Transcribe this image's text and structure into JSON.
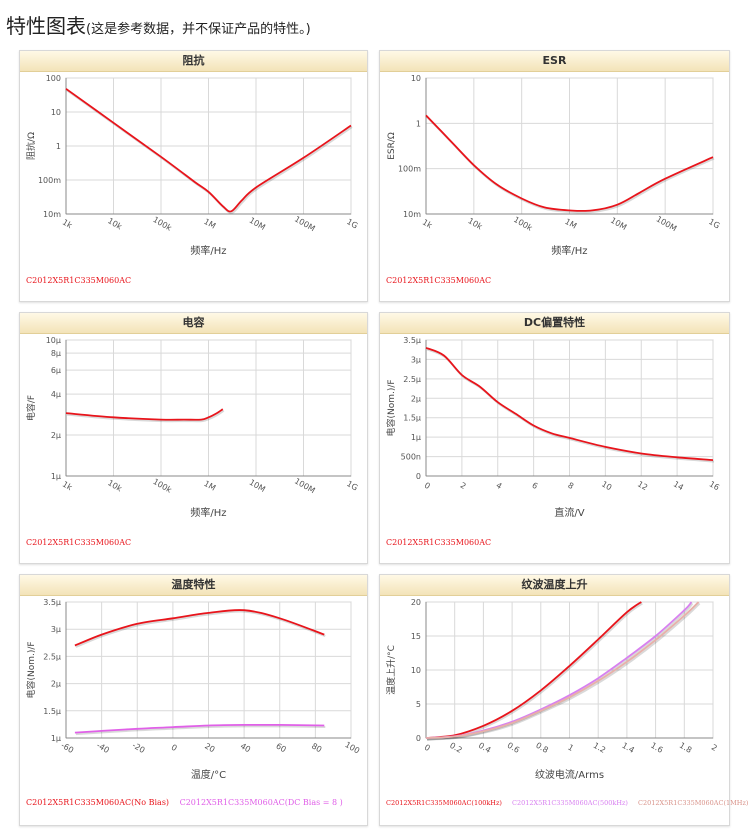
{
  "page": {
    "title": "特性图表",
    "subtitle": "(这是参考数据，并不保证产品的特性。)"
  },
  "chart_data": [
    {
      "id": "impedance",
      "type": "line",
      "title": "阻抗",
      "xlabel": "频率/Hz",
      "ylabel": "阻抗/Ω",
      "xscale": "log",
      "yscale": "log",
      "xlim": [
        1000,
        1000000000
      ],
      "ylim": [
        0.01,
        100
      ],
      "xticks": [
        1000,
        10000,
        100000,
        1000000,
        10000000,
        100000000,
        1000000000
      ],
      "xticklabels": [
        "1k",
        "10k",
        "100k",
        "1M",
        "10M",
        "100M",
        "1G"
      ],
      "yticks": [
        0.01,
        0.1,
        1,
        10,
        100
      ],
      "yticklabels": [
        "10m",
        "100m",
        "1",
        "10",
        "100"
      ],
      "grid": true,
      "series": [
        {
          "name": "C2012X5R1C335M060AC",
          "color": "#e8141b",
          "x": [
            1000,
            10000,
            100000,
            500000,
            1000000,
            2000000,
            3000000,
            5000000,
            10000000,
            100000000,
            1000000000
          ],
          "y": [
            48,
            4.8,
            0.48,
            0.09,
            0.045,
            0.017,
            0.012,
            0.025,
            0.06,
            0.45,
            4
          ]
        }
      ],
      "legend_position": "bottom-left"
    },
    {
      "id": "esr",
      "type": "line",
      "title": "ESR",
      "xlabel": "频率/Hz",
      "ylabel": "ESR/Ω",
      "xscale": "log",
      "yscale": "log",
      "xlim": [
        1000,
        1000000000
      ],
      "ylim": [
        0.01,
        10
      ],
      "xticks": [
        1000,
        10000,
        100000,
        1000000,
        10000000,
        100000000,
        1000000000
      ],
      "xticklabels": [
        "1k",
        "10k",
        "100k",
        "1M",
        "10M",
        "100M",
        "1G"
      ],
      "yticks": [
        0.01,
        0.1,
        1,
        10
      ],
      "yticklabels": [
        "10m",
        "100m",
        "1",
        "10"
      ],
      "grid": true,
      "series": [
        {
          "name": "C2012X5R1C335M060AC",
          "color": "#e8141b",
          "x": [
            1000,
            3000,
            10000,
            30000,
            100000,
            300000,
            1000000,
            3000000,
            10000000,
            30000000,
            100000000,
            1000000000
          ],
          "y": [
            1.5,
            0.45,
            0.12,
            0.045,
            0.022,
            0.014,
            0.012,
            0.012,
            0.016,
            0.03,
            0.06,
            0.18
          ]
        }
      ],
      "legend_position": "bottom-left"
    },
    {
      "id": "capacitance",
      "type": "line",
      "title": "电容",
      "xlabel": "频率/Hz",
      "ylabel": "电容/F",
      "xscale": "log",
      "yscale": "log",
      "xlim": [
        1000,
        1000000000
      ],
      "ylim": [
        1e-06,
        1e-05
      ],
      "xticks": [
        1000,
        10000,
        100000,
        1000000,
        10000000,
        100000000,
        1000000000
      ],
      "xticklabels": [
        "1k",
        "10k",
        "100k",
        "1M",
        "10M",
        "100M",
        "1G"
      ],
      "yticks": [
        1e-06,
        2e-06,
        4e-06,
        6e-06,
        8e-06,
        1e-05
      ],
      "yticklabels": [
        "1μ",
        "2μ",
        "4μ",
        "6μ",
        "8μ",
        "10μ"
      ],
      "grid": true,
      "series": [
        {
          "name": "C2012X5R1C335M060AC",
          "color": "#e8141b",
          "x": [
            1000,
            10000,
            100000,
            300000,
            700000,
            1000000,
            1500000,
            2000000
          ],
          "y": [
            2.9e-06,
            2.7e-06,
            2.6e-06,
            2.6e-06,
            2.6e-06,
            2.7e-06,
            2.9e-06,
            3.1e-06
          ]
        }
      ],
      "legend_position": "bottom-left"
    },
    {
      "id": "dcbias",
      "type": "line",
      "title": "DC偏置特性",
      "xlabel": "直流/V",
      "ylabel": "电容(Nom.)/F",
      "xlim": [
        0,
        16
      ],
      "ylim": [
        0,
        3.5e-06
      ],
      "xticks": [
        0,
        2,
        4,
        6,
        8,
        10,
        12,
        14,
        16
      ],
      "xticklabels": [
        "0",
        "2",
        "4",
        "6",
        "8",
        "10",
        "12",
        "14",
        "16"
      ],
      "yticks": [
        0,
        5e-07,
        1e-06,
        1.5e-06,
        2e-06,
        2.5e-06,
        3e-06,
        3.5e-06
      ],
      "yticklabels": [
        "0",
        "500n",
        "1μ",
        "1.5μ",
        "2μ",
        "2.5μ",
        "3μ",
        "3.5μ"
      ],
      "grid": true,
      "series": [
        {
          "name": "C2012X5R1C335M060AC",
          "color": "#e8141b",
          "x": [
            0,
            1,
            2,
            3,
            4,
            5,
            6,
            7,
            8,
            10,
            12,
            14,
            16
          ],
          "y": [
            3.3e-06,
            3.1e-06,
            2.6e-06,
            2.3e-06,
            1.9e-06,
            1.6e-06,
            1.3e-06,
            1.1e-06,
            9.8e-07,
            7.5e-07,
            5.8e-07,
            4.8e-07,
            4.1e-07
          ]
        }
      ],
      "legend_position": "bottom-left"
    },
    {
      "id": "temperature",
      "type": "line",
      "title": "温度特性",
      "xlabel": "温度/°C",
      "ylabel": "电容(Nom.)/F",
      "xlim": [
        -60,
        100
      ],
      "ylim": [
        1e-06,
        3.5e-06
      ],
      "xticks": [
        -60,
        -40,
        -20,
        0,
        20,
        40,
        60,
        80,
        100
      ],
      "xticklabels": [
        "-60",
        "-40",
        "-20",
        "0",
        "20",
        "40",
        "60",
        "80",
        "100"
      ],
      "yticks": [
        1e-06,
        1.5e-06,
        2e-06,
        2.5e-06,
        3e-06,
        3.5e-06
      ],
      "yticklabels": [
        "1μ",
        "1.5μ",
        "2μ",
        "2.5μ",
        "3μ",
        "3.5μ"
      ],
      "grid": true,
      "series": [
        {
          "name": "C2012X5R1C335M060AC(No Bias)",
          "color": "#e8141b",
          "x": [
            -55,
            -40,
            -20,
            0,
            20,
            40,
            60,
            85
          ],
          "y": [
            2.7e-06,
            2.9e-06,
            3.1e-06,
            3.2e-06,
            3.3e-06,
            3.35e-06,
            3.2e-06,
            2.9e-06
          ]
        },
        {
          "name": "C2012X5R1C335M060AC(DC Bias = 8 )",
          "color": "#e060e8",
          "x": [
            -55,
            -40,
            -20,
            0,
            20,
            40,
            60,
            85
          ],
          "y": [
            1.1e-06,
            1.13e-06,
            1.17e-06,
            1.2e-06,
            1.23e-06,
            1.24e-06,
            1.24e-06,
            1.23e-06
          ]
        }
      ],
      "legend_position": "bottom"
    },
    {
      "id": "ripple",
      "type": "line",
      "title": "纹波温度上升",
      "xlabel": "纹波电流/Arms",
      "ylabel": "温度上升/°C",
      "xlim": [
        0,
        2
      ],
      "ylim": [
        0,
        20
      ],
      "xticks": [
        0,
        0.2,
        0.4,
        0.6,
        0.8,
        1,
        1.2,
        1.4,
        1.6,
        1.8,
        2
      ],
      "xticklabels": [
        "0",
        "0.2",
        "0.4",
        "0.6",
        "0.8",
        "1",
        "1.2",
        "1.4",
        "1.6",
        "1.8",
        "2"
      ],
      "yticks": [
        0,
        5,
        10,
        15,
        20
      ],
      "yticklabels": [
        "0",
        "5",
        "10",
        "15",
        "20"
      ],
      "grid": true,
      "series": [
        {
          "name": "C2012X5R1C335M060AC(100kHz)",
          "color": "#e8141b",
          "x": [
            0,
            0.2,
            0.4,
            0.6,
            0.8,
            1.0,
            1.2,
            1.4,
            1.5
          ],
          "y": [
            0,
            0.4,
            1.8,
            4,
            7,
            10.6,
            14.5,
            18.5,
            20
          ]
        },
        {
          "name": "C2012X5R1C335M060AC(500kHz)",
          "color": "#d880f0",
          "x": [
            0,
            0.2,
            0.4,
            0.6,
            0.8,
            1.0,
            1.2,
            1.4,
            1.6,
            1.8,
            1.85
          ],
          "y": [
            0,
            0.25,
            1.1,
            2.4,
            4.2,
            6.3,
            8.8,
            11.8,
            15,
            18.8,
            20
          ]
        },
        {
          "name": "C2012X5R1C335M060AC(1MHz)",
          "color": "#e8b0a8",
          "x": [
            0,
            0.2,
            0.4,
            0.6,
            0.8,
            1.0,
            1.2,
            1.4,
            1.6,
            1.8,
            1.9
          ],
          "y": [
            0,
            0.22,
            1.0,
            2.2,
            4.0,
            6.0,
            8.4,
            11.2,
            14.4,
            18,
            20
          ]
        }
      ],
      "legend_position": "bottom"
    }
  ]
}
